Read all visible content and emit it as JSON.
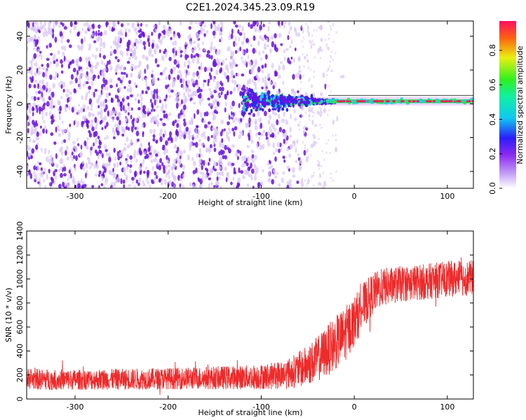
{
  "page_title": "C2E1.2024.345.23.09.R19",
  "chart_data": [
    {
      "type": "heatmap",
      "title": "C2E1.2024.345.23.09.R19",
      "xlabel": "Height of straight line (km)",
      "ylabel": "Frequency (Hz)",
      "xlim": [
        -352,
        128
      ],
      "ylim": [
        -50,
        49
      ],
      "x_ticks": [
        "-300",
        "-200",
        "-100",
        "0",
        "100"
      ],
      "x_tick_values": [
        -300,
        -200,
        -100,
        0,
        100
      ],
      "y_ticks": [
        "-40",
        "-20",
        "0",
        "20",
        "40"
      ],
      "y_tick_values": [
        -40,
        -20,
        0,
        20,
        40
      ],
      "colorbar_label": "Normalized spectral amplitude",
      "colorbar_ticks": [
        "0.0",
        "0.2",
        "0.4",
        "0.6",
        "0.8"
      ],
      "colorbar_tick_values": [
        0.0,
        0.2,
        0.4,
        0.6,
        0.8
      ],
      "colorbar_range": [
        0,
        0.97
      ],
      "description_series": {
        "noise_region_x": [
          -352,
          -40
        ],
        "signal_line_freq_hz": 1.5,
        "signal_start_x": -120,
        "strong_signal_start_x": -30
      },
      "colors": {
        "noise_dark": "#6a14e0",
        "noise_light": "#d8c4f6",
        "signal_line": "#ff2050",
        "signal_green": "#30e060",
        "signal_cyan": "#20d0e0"
      }
    },
    {
      "type": "line",
      "title": "",
      "xlabel": "Height of straight line (km)",
      "ylabel": "SNR (10 * v/v)",
      "xlim": [
        -352,
        128
      ],
      "ylim": [
        0,
        1400
      ],
      "x_ticks": [
        "-300",
        "-200",
        "-100",
        "0",
        "100"
      ],
      "x_tick_values": [
        -300,
        -200,
        -100,
        0,
        100
      ],
      "y_ticks": [
        "0",
        "200",
        "400",
        "600",
        "800",
        "1000",
        "1200",
        "1400"
      ],
      "y_tick_values": [
        0,
        200,
        400,
        600,
        800,
        1000,
        1200,
        1400
      ],
      "series": [
        {
          "name": "SNR",
          "color": "#ee2a2a",
          "trend_x": [
            -352,
            -300,
            -200,
            -120,
            -90,
            -70,
            -55,
            -40,
            -25,
            -10,
            0,
            10,
            20,
            30,
            50,
            80,
            100,
            128
          ],
          "trend_mean": [
            165,
            160,
            170,
            180,
            190,
            215,
            260,
            330,
            430,
            540,
            650,
            780,
            880,
            930,
            960,
            980,
            1000,
            1010
          ],
          "trend_spread": [
            90,
            85,
            90,
            100,
            110,
            130,
            160,
            190,
            220,
            230,
            210,
            190,
            170,
            160,
            150,
            150,
            150,
            150
          ]
        }
      ]
    }
  ]
}
